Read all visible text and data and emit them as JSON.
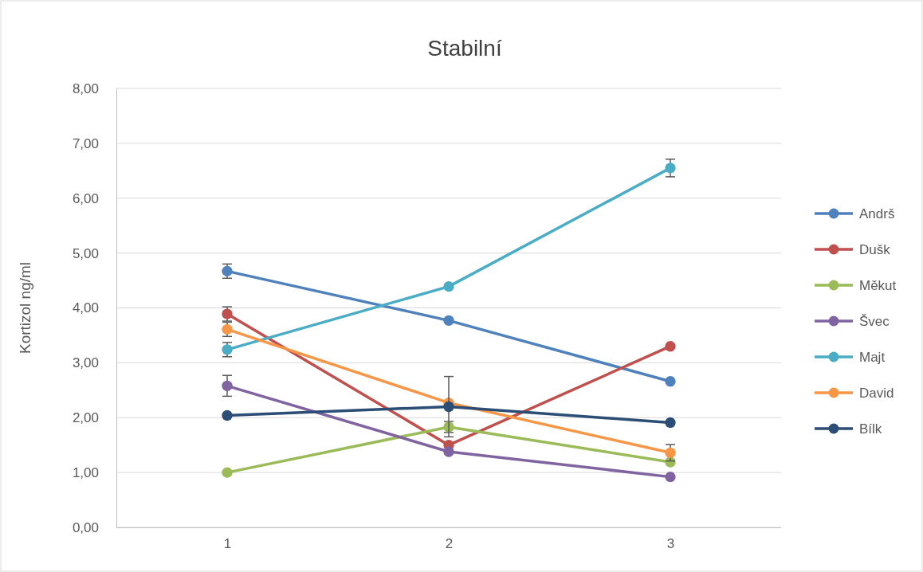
{
  "chart_data": {
    "type": "line",
    "title": "Stabilní",
    "ylabel": "Kortizol ng/ml",
    "categories": [
      "1",
      "2",
      "3"
    ],
    "ylim": [
      0,
      8
    ],
    "yticks": [
      {
        "value": 0,
        "label": "0,00"
      },
      {
        "value": 1,
        "label": "1,00"
      },
      {
        "value": 2,
        "label": "2,00"
      },
      {
        "value": 3,
        "label": "3,00"
      },
      {
        "value": 4,
        "label": "4,00"
      },
      {
        "value": 5,
        "label": "5,00"
      },
      {
        "value": 6,
        "label": "6,00"
      },
      {
        "value": 7,
        "label": "7,00"
      },
      {
        "value": 8,
        "label": "8,00"
      }
    ],
    "grid": "y",
    "legend": "right",
    "marker": "circle",
    "line_style": "solid",
    "series": [
      {
        "name": "Andrš",
        "color": "#4f81bd",
        "values": [
          4.67,
          3.77,
          2.66
        ],
        "errors": [
          0.13,
          null,
          null
        ]
      },
      {
        "name": "Dušk",
        "color": "#c0504d",
        "values": [
          3.89,
          1.5,
          3.3
        ],
        "errors": [
          0.13,
          null,
          null
        ]
      },
      {
        "name": "Měkut",
        "color": "#9bbb59",
        "values": [
          1.0,
          1.83,
          1.19
        ],
        "errors": [
          null,
          0.1,
          null
        ]
      },
      {
        "name": "Švec",
        "color": "#8064a2",
        "values": [
          2.58,
          1.38,
          0.92
        ],
        "errors": [
          0.19,
          null,
          null
        ]
      },
      {
        "name": "Majt",
        "color": "#4bacc6",
        "values": [
          3.24,
          4.39,
          6.55
        ],
        "errors": [
          0.13,
          null,
          0.16
        ]
      },
      {
        "name": "David",
        "color": "#f79646",
        "values": [
          3.61,
          2.27,
          1.36
        ],
        "errors": [
          0.13,
          null,
          0.15
        ]
      },
      {
        "name": "Bílk",
        "color": "#2c4d75",
        "values": [
          2.04,
          2.2,
          1.91
        ],
        "errors": [
          null,
          0.55,
          null
        ]
      }
    ]
  }
}
